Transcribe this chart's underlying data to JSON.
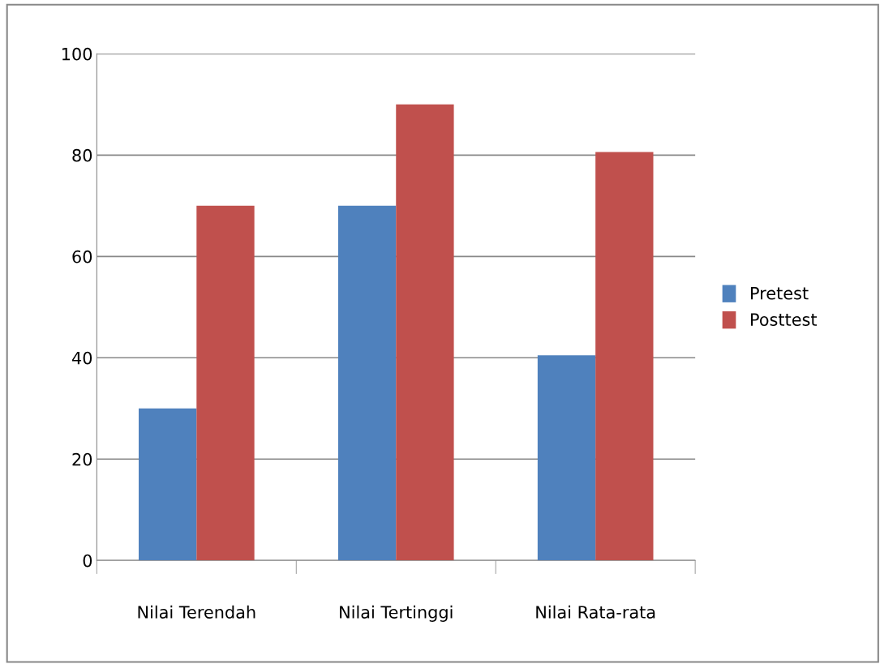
{
  "chart_data": {
    "type": "bar",
    "categories": [
      "Nilai Terendah",
      "Nilai Tertinggi",
      "Nilai Rata-rata"
    ],
    "series": [
      {
        "name": "Pretest",
        "color": "#4f81bd",
        "values": [
          30,
          70,
          40.5
        ]
      },
      {
        "name": "Posttest",
        "color": "#c0504d",
        "values": [
          70,
          90,
          80.6
        ]
      }
    ],
    "ylim": [
      0,
      100
    ],
    "yticks": [
      0,
      20,
      40,
      60,
      80,
      100
    ],
    "grid": "y",
    "legend": "right"
  }
}
